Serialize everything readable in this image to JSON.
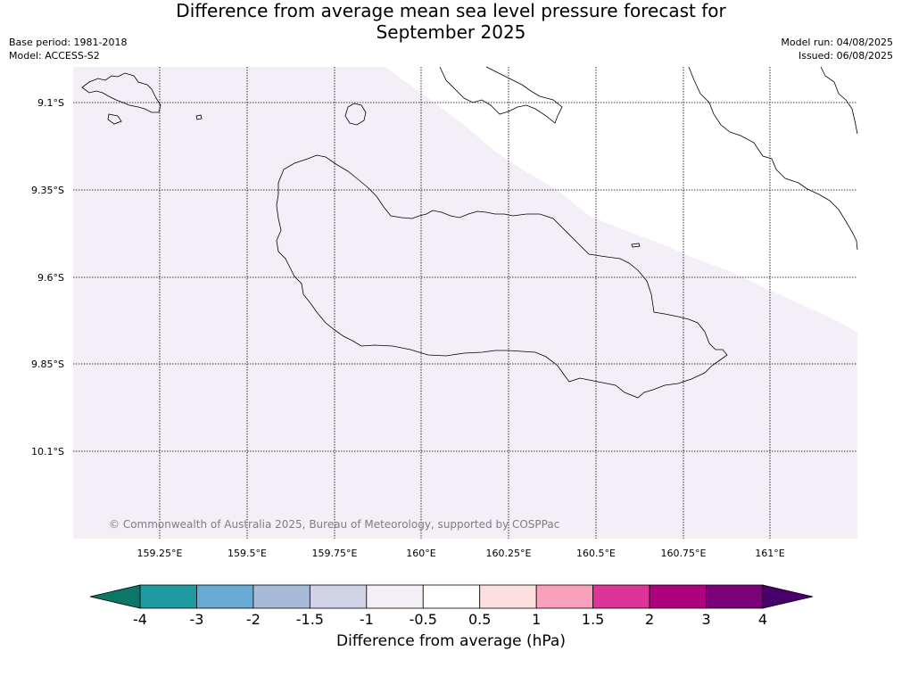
{
  "title": {
    "line1": "Difference from average mean sea level pressure forecast for",
    "line2": "September 2025"
  },
  "meta": {
    "base_period": "Base period: 1981-2018",
    "model": "Model: ACCESS-S2",
    "model_run": "Model run: 04/08/2025",
    "issued": "Issued: 06/08/2025"
  },
  "map": {
    "lat_labels": [
      "9.1°S",
      "9.35°S",
      "9.6°S",
      "9.85°S",
      "10.1°S"
    ],
    "lon_labels": [
      "159.25°E",
      "159.5°E",
      "159.75°E",
      "160°E",
      "160.25°E",
      "160.5°E",
      "160.75°E",
      "161°E"
    ],
    "copyright": "© Commonwealth of Australia 2025, Bureau of Meteorology, supported by COSPPac",
    "fill_colors": {
      "minus_1_to_minus_0_5": "#f4eef6",
      "minus_0_5_to_0_5": "#ffffff"
    }
  },
  "colorbar": {
    "tick_labels": [
      "-4",
      "-3",
      "-2",
      "-1.5",
      "-1",
      "-0.5",
      "0.5",
      "1",
      "1.5",
      "2",
      "3",
      "4"
    ],
    "colors": [
      "#0c7667",
      "#1f9aa0",
      "#67aad3",
      "#a7bad8",
      "#d0d2e6",
      "#f4eef6",
      "#ffffff",
      "#fde0dd",
      "#f9a0bc",
      "#dd3497",
      "#ae017e",
      "#7a0177",
      "#49006a"
    ],
    "label": "Difference from average (hPa)"
  }
}
